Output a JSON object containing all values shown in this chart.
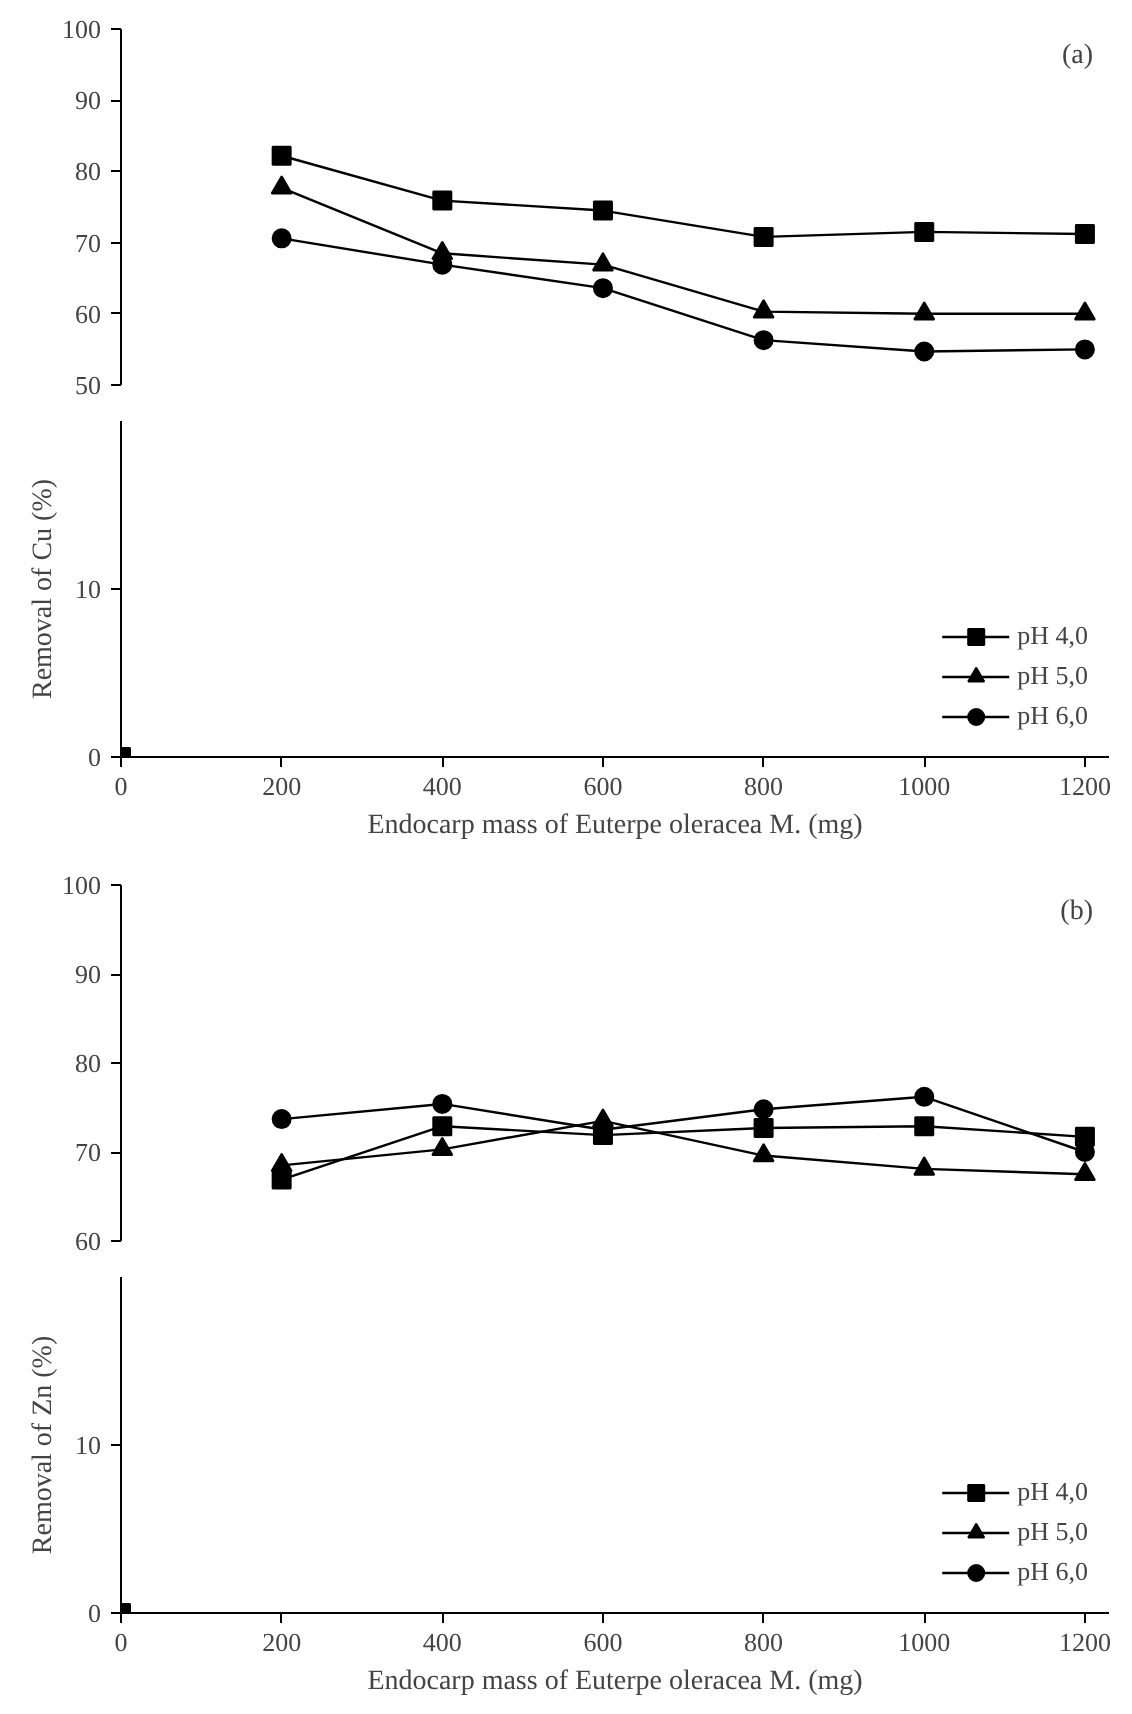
{
  "chart_data": [
    {
      "type": "line",
      "annotations": [
        "(a)"
      ],
      "xticks": [
        0,
        200,
        400,
        600,
        800,
        1000,
        1200
      ],
      "ylim": [
        50,
        100
      ],
      "yticks": [
        50,
        60,
        70,
        80,
        90,
        100
      ],
      "tick_labels": "y",
      "grid": false,
      "line_style": "solid",
      "series": [
        {
          "color": "#000000",
          "marker": "square",
          "x": [
            200,
            400,
            600,
            800,
            1000,
            1200
          ],
          "values": [
            82.2,
            75.9,
            74.5,
            70.8,
            71.5,
            71.2
          ]
        },
        {
          "color": "#000000",
          "marker": "triangle",
          "x": [
            200,
            400,
            600,
            800,
            1000,
            1200
          ],
          "values": [
            77.7,
            68.5,
            66.9,
            60.3,
            60.0,
            60.0
          ]
        },
        {
          "color": "#000000",
          "marker": "circle",
          "x": [
            200,
            400,
            600,
            800,
            1000,
            1200
          ],
          "values": [
            70.6,
            66.9,
            63.6,
            56.3,
            54.7,
            55.0
          ]
        }
      ]
    },
    {
      "type": "line",
      "xlabel": "Endocarp mass of Euterpe oleracea M. (mg)",
      "ylabel": "Removal of Cu (%)",
      "xlim": [
        0,
        1230
      ],
      "xticks": [
        0,
        200,
        400,
        600,
        800,
        1000,
        1200
      ],
      "ylim": [
        0,
        20
      ],
      "yticks": [
        0,
        10
      ],
      "legend": "bottom right",
      "grid": false,
      "line_style": "solid",
      "series": [
        {
          "name": "pH 4,0",
          "color": "#000000",
          "marker": "square",
          "x": [
            0
          ],
          "values": [
            0
          ]
        },
        {
          "name": "pH 5,0",
          "color": "#000000",
          "marker": "triangle"
        },
        {
          "name": "pH 6,0",
          "color": "#000000",
          "marker": "circle"
        }
      ]
    },
    {
      "type": "line",
      "annotations": [
        "(b)"
      ],
      "xticks": [
        0,
        200,
        400,
        600,
        800,
        1000,
        1200
      ],
      "ylim": [
        60,
        100
      ],
      "yticks": [
        60,
        70,
        80,
        90,
        100
      ],
      "tick_labels": "y",
      "grid": false,
      "line_style": "solid",
      "series": [
        {
          "color": "#000000",
          "marker": "square",
          "x": [
            200,
            400,
            600,
            800,
            1000,
            1200
          ],
          "values": [
            66.9,
            72.9,
            71.9,
            72.7,
            72.9,
            71.7
          ]
        },
        {
          "color": "#000000",
          "marker": "triangle",
          "x": [
            200,
            400,
            600,
            800,
            1000,
            1200
          ],
          "values": [
            68.5,
            70.3,
            73.5,
            69.6,
            68.1,
            67.5
          ]
        },
        {
          "color": "#000000",
          "marker": "circle",
          "x": [
            200,
            400,
            600,
            800,
            1000,
            1200
          ],
          "values": [
            73.7,
            75.4,
            72.5,
            74.8,
            76.2,
            70.0
          ]
        }
      ]
    },
    {
      "type": "line",
      "xlabel": "Endocarp mass of Euterpe oleracea M. (mg)",
      "ylabel": "Removal of Zn (%)",
      "xlim": [
        0,
        1230
      ],
      "xticks": [
        0,
        200,
        400,
        600,
        800,
        1000,
        1200
      ],
      "ylim": [
        0,
        20
      ],
      "yticks": [
        0,
        10
      ],
      "legend": "bottom right",
      "grid": false,
      "line_style": "solid",
      "series": [
        {
          "name": "pH 4,0",
          "color": "#000000",
          "marker": "square",
          "x": [
            0
          ],
          "values": [
            0
          ]
        },
        {
          "name": "pH 5,0",
          "color": "#000000",
          "marker": "triangle"
        },
        {
          "name": "pH 6,0",
          "color": "#000000",
          "marker": "circle"
        }
      ]
    }
  ]
}
